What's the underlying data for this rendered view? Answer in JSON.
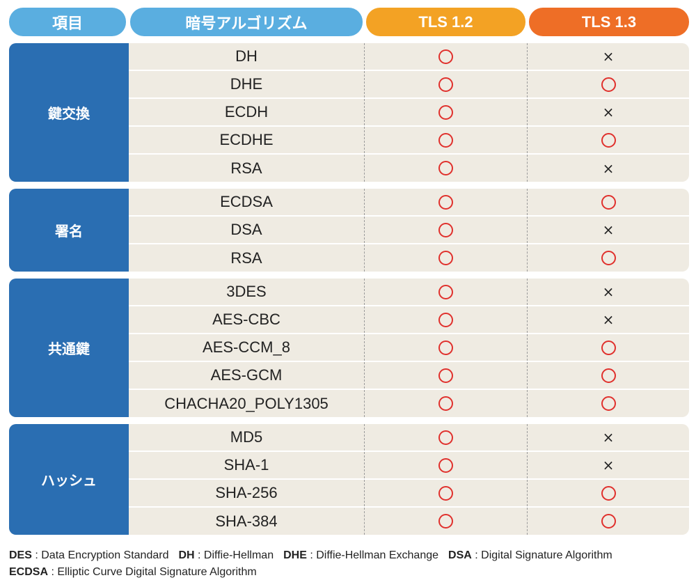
{
  "header": {
    "item": "項目",
    "algorithm": "暗号アルゴリズム",
    "tls12": "TLS 1.2",
    "tls13": "TLS 1.3"
  },
  "colors": {
    "header_blue": "#5aaee0",
    "tls12_orange": "#f3a224",
    "tls13_orange": "#ee6e26",
    "category_blue": "#2a6eb2",
    "row_bg": "#efebe2",
    "circle_red": "#e0302c"
  },
  "icons": {
    "supported": "red-circle-icon",
    "unsupported": "cross-icon"
  },
  "groups": [
    {
      "category": "鍵交換",
      "rows": [
        {
          "algo": "DH",
          "tls12": true,
          "tls13": false
        },
        {
          "algo": "DHE",
          "tls12": true,
          "tls13": true
        },
        {
          "algo": "ECDH",
          "tls12": true,
          "tls13": false
        },
        {
          "algo": "ECDHE",
          "tls12": true,
          "tls13": true
        },
        {
          "algo": "RSA",
          "tls12": true,
          "tls13": false
        }
      ]
    },
    {
      "category": "署名",
      "rows": [
        {
          "algo": "ECDSA",
          "tls12": true,
          "tls13": true
        },
        {
          "algo": "DSA",
          "tls12": true,
          "tls13": false
        },
        {
          "algo": "RSA",
          "tls12": true,
          "tls13": true
        }
      ]
    },
    {
      "category": "共通鍵",
      "rows": [
        {
          "algo": "3DES",
          "tls12": true,
          "tls13": false
        },
        {
          "algo": "AES-CBC",
          "tls12": true,
          "tls13": false
        },
        {
          "algo": "AES-CCM_8",
          "tls12": true,
          "tls13": true
        },
        {
          "algo": "AES-GCM",
          "tls12": true,
          "tls13": true
        },
        {
          "algo": "CHACHA20_POLY1305",
          "tls12": true,
          "tls13": true
        }
      ]
    },
    {
      "category": "ハッシュ",
      "rows": [
        {
          "algo": "MD5",
          "tls12": true,
          "tls13": false
        },
        {
          "algo": "SHA-1",
          "tls12": true,
          "tls13": false
        },
        {
          "algo": "SHA-256",
          "tls12": true,
          "tls13": true
        },
        {
          "algo": "SHA-384",
          "tls12": true,
          "tls13": true
        }
      ]
    }
  ],
  "marks": {
    "yes": "○",
    "no": "×"
  },
  "legend": {
    "line1": [
      {
        "abbr": "DES",
        "sep": " : ",
        "text": "Data Encryption Standard"
      },
      {
        "abbr": "DH",
        "sep": " : ",
        "text": "Diffie-Hellman"
      },
      {
        "abbr": "DHE",
        "sep": " : ",
        "text": "Diffie-Hellman Exchange"
      },
      {
        "abbr": "DSA",
        "sep": " : ",
        "text": "Digital Signature Algorithm"
      }
    ],
    "line2": [
      {
        "abbr": "ECDSA",
        "sep": " : ",
        "text": "Elliptic Curve Digital Signature Algorithm"
      }
    ]
  }
}
